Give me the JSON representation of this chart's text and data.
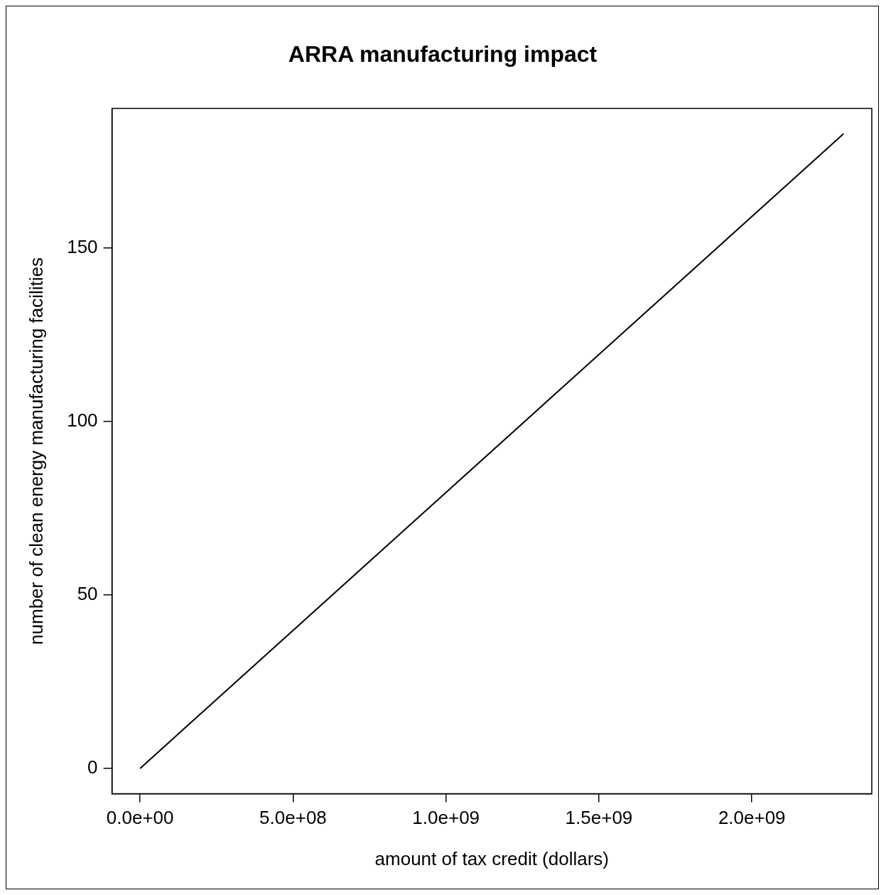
{
  "chart_data": {
    "type": "line",
    "title": "ARRA manufacturing impact",
    "xlabel": "amount of tax credit (dollars)",
    "ylabel": "number of clean energy manufacturing facilities",
    "x": [
      0,
      2300000000
    ],
    "values": [
      0,
      183
    ],
    "color": "#000000",
    "marker": "none",
    "line_style": "solid",
    "grid": false,
    "legend": false,
    "xlim": [
      -92000000,
      2392000000
    ],
    "ylim": [
      -7.32,
      190.32
    ],
    "xticks": [
      {
        "value": 0,
        "label": "0.0e+00"
      },
      {
        "value": 500000000,
        "label": "5.0e+08"
      },
      {
        "value": 1000000000,
        "label": "1.0e+09"
      },
      {
        "value": 1500000000,
        "label": "1.5e+09"
      },
      {
        "value": 2000000000,
        "label": "2.0e+09"
      }
    ],
    "yticks": [
      0,
      50,
      100,
      150
    ]
  }
}
